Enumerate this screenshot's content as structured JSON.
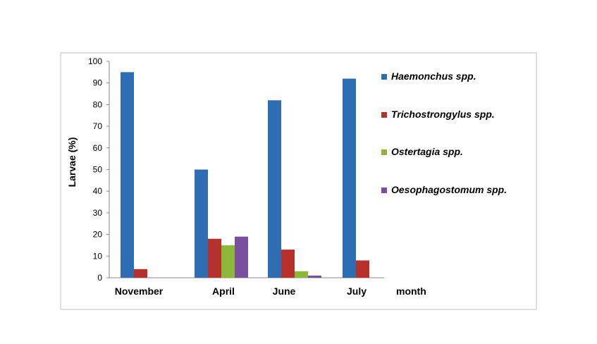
{
  "chart_data": {
    "type": "bar",
    "categories": [
      "November",
      "April",
      "June",
      "July"
    ],
    "series": [
      {
        "name": "Haemonchus spp.",
        "color": "#2E6DB4",
        "values": [
          95,
          50,
          82,
          92
        ]
      },
      {
        "name": "Trichostrongylus spp.",
        "color": "#B7312C",
        "values": [
          4,
          18,
          13,
          8
        ]
      },
      {
        "name": "Ostertagia spp.",
        "color": "#8CB83A",
        "values": [
          null,
          15,
          3,
          null
        ]
      },
      {
        "name": "Oesophagostomum spp.",
        "color": "#7A4FA0",
        "values": [
          null,
          19,
          1,
          null
        ]
      }
    ],
    "ylabel": "Larvae (%)",
    "xlabel": "month",
    "ylim": [
      0,
      100
    ],
    "yticks": [
      0,
      10,
      20,
      30,
      40,
      50,
      60,
      70,
      80,
      90,
      100
    ],
    "grid": false,
    "legend_position": "right"
  }
}
